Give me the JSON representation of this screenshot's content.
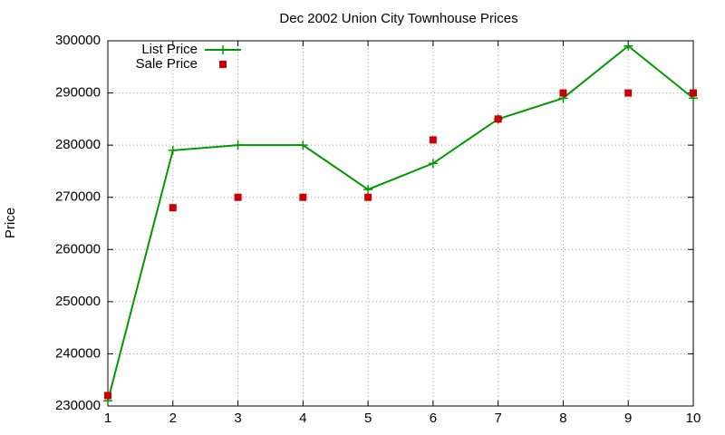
{
  "chart_data": {
    "type": "line",
    "title": "Dec 2002 Union City Townhouse Prices",
    "y_label": "Price",
    "x": [
      1,
      2,
      3,
      4,
      5,
      6,
      7,
      8,
      9,
      10
    ],
    "series": [
      {
        "name": "List Price",
        "color": "#009900",
        "line": true,
        "marker": "plus",
        "values": [
          231000,
          279000,
          280000,
          280000,
          271500,
          276500,
          285000,
          289000,
          299000,
          289000
        ]
      },
      {
        "name": "Sale Price",
        "color": "#cc0000",
        "line": false,
        "marker": "square",
        "values": [
          232000,
          268000,
          270000,
          270000,
          270000,
          281000,
          285000,
          290000,
          290000,
          290000
        ]
      }
    ],
    "xlim": [
      1,
      10
    ],
    "xticks": [
      1,
      2,
      3,
      4,
      5,
      6,
      7,
      8,
      9,
      10
    ],
    "ylim": [
      230000,
      300000
    ],
    "yticks": [
      230000,
      240000,
      250000,
      260000,
      270000,
      280000,
      290000,
      300000
    ],
    "grid": true,
    "legend": "top-left"
  }
}
